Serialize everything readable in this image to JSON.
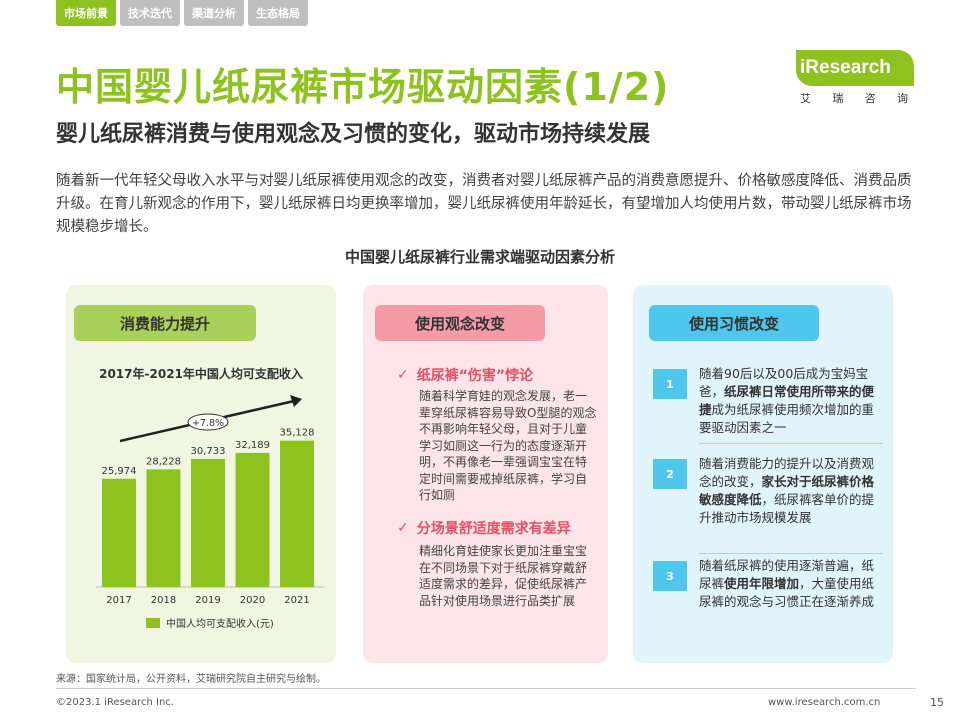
{
  "tabs": [
    {
      "label": "市场前景",
      "active": true
    },
    {
      "label": "技术迭代",
      "active": false
    },
    {
      "label": "渠道分析",
      "active": false
    },
    {
      "label": "生态格局",
      "active": false
    }
  ],
  "title": "中国婴儿纸尿裤市场驱动因素(1/2)",
  "subtitle": "婴儿纸尿裤消费与使用观念及习惯的变化，驱动市场持续发展",
  "logo": {
    "text": "iResearch",
    "cn": [
      "艾",
      "瑞",
      "咨",
      "询"
    ]
  },
  "intro": "随着新一代年轻父母收入水平与对婴儿纸尿裤使用观念的改变，消费者对婴儿纸尿裤产品的消费意愿提升、价格敏感度降低、消费品质升级。在育儿新观念的作用下，婴儿纸尿裤日均更换率增加，婴儿纸尿裤使用年龄延长，有望增加人均使用片数，带动婴儿纸尿裤市场规模稳步增长。",
  "section_title": "中国婴儿纸尿裤行业需求端驱动因素分析",
  "panels": {
    "consumption": {
      "title": "消费能力提升"
    },
    "concept": {
      "title": "使用观念改变",
      "items": [
        {
          "title": "纸尿裤“伤害”悖论",
          "text": "随着科学育娃的观念发展，老一辈穿纸尿裤容易导致O型腿的观念不再影响年轻父母，且对于儿童学习如厕这一行为的态度逐渐开明，不再像老一辈强调宝宝在特定时间需要戒掉纸尿裤，学习自行如厕"
        },
        {
          "title": "分场景舒适度需求有差异",
          "text": "精细化育娃使家长更加注重宝宝在不同场景下对于纸尿裤穿戴舒适度需求的差异，促使纸尿裤产品针对使用场景进行品类扩展"
        }
      ]
    },
    "habit": {
      "title": "使用习惯改变",
      "steps": [
        {
          "num": "1",
          "pre": "随着90后以及00后成为宝妈宝爸，",
          "bold": "纸尿裤日常使用所带来的便捷",
          "post": "成为纸尿裤使用频次增加的重要驱动因素之一"
        },
        {
          "num": "2",
          "pre": "随着消费能力的提升以及消费观念的改变，",
          "bold": "家长对于纸尿裤价格敏感度降低",
          "post": "，纸尿裤客单价的提升推动市场规模发展"
        },
        {
          "num": "3",
          "pre": "随着纸尿裤的使用逐渐普遍，纸尿裤",
          "bold": "使用年限增加",
          "post": "，大童使用纸尿裤的观念与习惯正在逐渐养成"
        }
      ]
    }
  },
  "chart_data": {
    "type": "bar",
    "title": "2017年-2021年中国人均可支配收入",
    "categories": [
      "2017",
      "2018",
      "2019",
      "2020",
      "2021"
    ],
    "series": [
      {
        "name": "中国人均可支配收入(元)",
        "values": [
          25974,
          28228,
          30733,
          32189,
          35128
        ],
        "labels": [
          "25,974",
          "28,228",
          "30,733",
          "32,189",
          "35,128"
        ]
      }
    ],
    "annotation": "+7.8%",
    "color": "#8dc21f"
  },
  "source": "来源：国家统计局，公开资料，艾瑞研究院自主研究与绘制。",
  "footer": {
    "left": "©2023.1 iResearch Inc.",
    "right": "www.iresearch.com.cn",
    "page": "15"
  }
}
